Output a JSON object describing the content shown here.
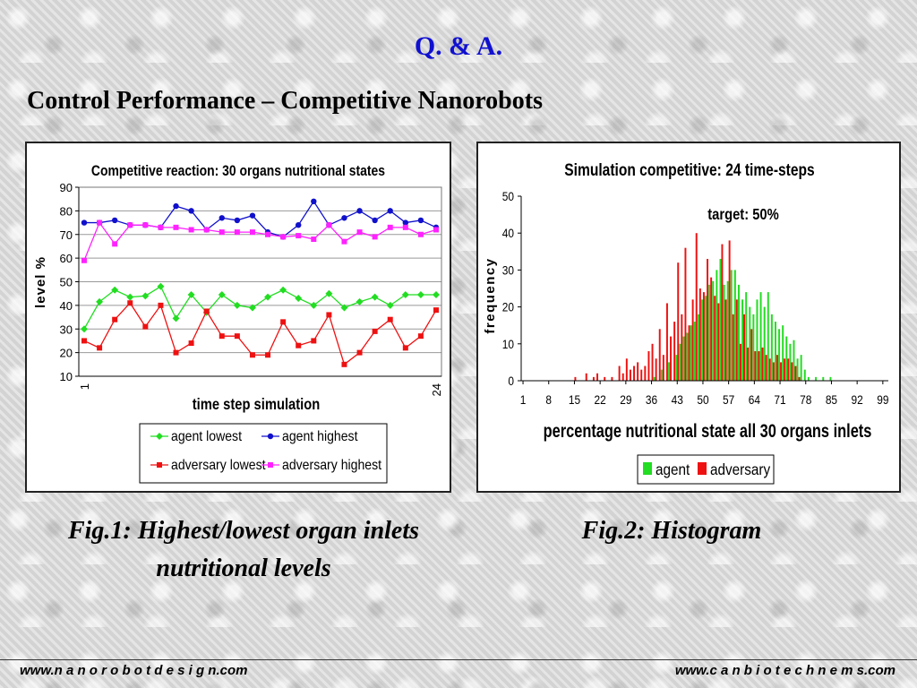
{
  "heading": "Q. & A.",
  "subtitle": "Control Performance – Competitive Nanorobots",
  "captions": {
    "fig1": "Fig.1: Highest/lowest organ inlets nutritional levels",
    "fig2": "Fig.2: Histogram"
  },
  "footer": {
    "left": "www.n a n o r o b o t d e s i g n.com",
    "right": "www.c a n b i o t e c h n e m s.com"
  },
  "chart_data": [
    {
      "type": "line",
      "title": "Competitive reaction: 30 organs nutritional states",
      "xlabel": "time step simulation",
      "ylabel": "level %",
      "x_tick_labels": [
        "1",
        "24"
      ],
      "x": [
        1,
        2,
        3,
        4,
        5,
        6,
        7,
        8,
        9,
        10,
        11,
        12,
        13,
        14,
        15,
        16,
        17,
        18,
        19,
        20,
        21,
        22,
        23,
        24
      ],
      "ylim": [
        10,
        90
      ],
      "yticks": [
        10,
        20,
        30,
        40,
        50,
        60,
        70,
        80,
        90
      ],
      "grid": "horizontal",
      "legend_position": "bottom",
      "series": [
        {
          "name": "agent lowest",
          "color": "#22dd22",
          "marker": "diamond",
          "values": [
            30,
            41.5,
            46.5,
            43.5,
            44,
            48,
            34.5,
            44.5,
            37,
            44.5,
            40,
            39,
            43.5,
            46.5,
            43,
            40,
            45,
            39,
            41.5,
            43.5,
            40,
            44.5,
            44.5,
            44.5
          ]
        },
        {
          "name": "agent highest",
          "color": "#1010cc",
          "marker": "circle",
          "values": [
            75,
            75,
            76,
            74,
            74,
            73,
            82,
            80,
            72,
            77,
            76,
            78,
            71,
            69,
            74,
            84,
            74,
            77,
            80,
            76,
            80,
            75,
            76,
            73
          ]
        },
        {
          "name": "adversary lowest",
          "color": "#ee1111",
          "marker": "square",
          "values": [
            25,
            22,
            34,
            41,
            31,
            40,
            20,
            24,
            37.5,
            27,
            27,
            19,
            19,
            33,
            23,
            25,
            36,
            15,
            20,
            29,
            34,
            22,
            27,
            38
          ]
        },
        {
          "name": "adversary highest",
          "color": "#ff22ff",
          "marker": "square",
          "values": [
            59,
            75,
            66,
            74,
            74,
            73,
            73,
            72,
            72,
            71,
            71,
            71,
            70,
            69,
            69.5,
            68,
            74,
            67,
            71,
            69,
            73,
            73,
            70,
            72
          ]
        }
      ]
    },
    {
      "type": "bar",
      "title": "Simulation competitive: 24 time-steps",
      "annotation": "target: 50%",
      "xlabel": "percentage nutritional state all 30 organs inlets",
      "ylabel": "frequency",
      "x_range": [
        1,
        100
      ],
      "x_tick_labels": [
        "1",
        "8",
        "15",
        "22",
        "29",
        "36",
        "43",
        "50",
        "57",
        "64",
        "71",
        "78",
        "85",
        "92",
        "99"
      ],
      "ylim": [
        0,
        50
      ],
      "yticks": [
        0,
        10,
        20,
        30,
        40,
        50
      ],
      "legend_position": "bottom",
      "series": [
        {
          "name": "agent",
          "color": "#22dd22",
          "x": [
            37,
            39,
            41,
            43,
            44,
            45,
            46,
            47,
            48,
            49,
            50,
            51,
            52,
            53,
            54,
            55,
            56,
            57,
            58,
            59,
            60,
            61,
            62,
            63,
            64,
            65,
            66,
            67,
            68,
            69,
            70,
            71,
            72,
            73,
            74,
            75,
            76,
            77,
            78,
            79,
            81,
            83,
            85
          ],
          "values": [
            1,
            3,
            5,
            7,
            10,
            12,
            13,
            15,
            16,
            18,
            22,
            23,
            26,
            27,
            30,
            33,
            26,
            27,
            30,
            30,
            26,
            22,
            24,
            20,
            18,
            22,
            24,
            20,
            24,
            18,
            16,
            14,
            15,
            12,
            10,
            11,
            6,
            7,
            3,
            1,
            1,
            1,
            1
          ]
        },
        {
          "name": "adversary",
          "color": "#ee1111",
          "x": [
            15,
            18,
            20,
            21,
            23,
            25,
            27,
            28,
            29,
            30,
            31,
            32,
            33,
            34,
            35,
            36,
            37,
            38,
            39,
            40,
            41,
            42,
            43,
            44,
            45,
            46,
            47,
            48,
            49,
            50,
            51,
            52,
            53,
            54,
            55,
            56,
            57,
            58,
            59,
            60,
            61,
            62,
            63,
            64,
            65,
            66,
            67,
            68,
            69,
            70,
            71,
            72,
            73,
            74,
            75,
            76
          ],
          "values": [
            1,
            2,
            1,
            2,
            1,
            1,
            4,
            2,
            6,
            3,
            4,
            5,
            3,
            4,
            8,
            10,
            6,
            14,
            7,
            21,
            12,
            16,
            32,
            18,
            36,
            15,
            22,
            40,
            25,
            24,
            33,
            28,
            23,
            21,
            37,
            22,
            38,
            18,
            22,
            10,
            18,
            9,
            14,
            8,
            8,
            9,
            7,
            6,
            5,
            7,
            5,
            6,
            6,
            5,
            4,
            1
          ]
        }
      ]
    }
  ]
}
